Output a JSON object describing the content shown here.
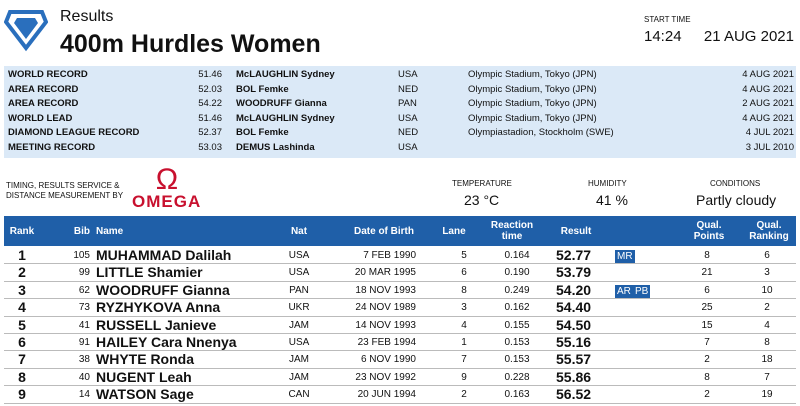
{
  "header": {
    "section": "Results",
    "title": "400m Hurdles Women",
    "start_time_label": "START TIME",
    "time": "14:24",
    "date": "21 AUG 2021"
  },
  "records": {
    "rows": [
      [
        "WORLD RECORD",
        "51.46",
        "McLAUGHLIN Sydney",
        "USA",
        "Olympic Stadium, Tokyo (JPN)",
        "4 AUG 2021"
      ],
      [
        "AREA RECORD",
        "52.03",
        "BOL Femke",
        "NED",
        "Olympic Stadium, Tokyo (JPN)",
        "4 AUG 2021"
      ],
      [
        "AREA RECORD",
        "54.22",
        "WOODRUFF Gianna",
        "PAN",
        "Olympic Stadium, Tokyo (JPN)",
        "2 AUG 2021"
      ],
      [
        "WORLD LEAD",
        "51.46",
        "McLAUGHLIN Sydney",
        "USA",
        "Olympic Stadium, Tokyo (JPN)",
        "4 AUG 2021"
      ],
      [
        "DIAMOND LEAGUE RECORD",
        "52.37",
        "BOL Femke",
        "NED",
        "Olympiastadion, Stockholm (SWE)",
        "4 JUL 2021"
      ],
      [
        "MEETING RECORD",
        "53.03",
        "DEMUS Lashinda",
        "USA",
        null,
        "3 JUL 2010"
      ]
    ]
  },
  "conditions": {
    "timing_label": "TIMING, RESULTS SERVICE & DISTANCE MEASUREMENT BY",
    "sponsor": "OMEGA",
    "temperature_label": "TEMPERATURE",
    "temperature": "23 °C",
    "humidity_label": "HUMIDITY",
    "humidity": "41 %",
    "conditions_label": "CONDITIONS",
    "conditions": "Partly cloudy"
  },
  "table": {
    "columns": [
      "Rank",
      "Bib",
      "Name",
      "Nat",
      "Date of Birth",
      "Lane",
      "Reaction time",
      "Result",
      "Qual. Points",
      "Qual. Ranking"
    ],
    "rows": [
      {
        "rank": "1",
        "bib": "105",
        "name": "MUHAMMAD Dalilah",
        "nat": "USA",
        "dob": "7 FEB 1990",
        "lane": "5",
        "reaction": "0.164",
        "result": "52.77",
        "tags": [
          "MR"
        ],
        "qual_points": "8",
        "qual_ranking": "6"
      },
      {
        "rank": "2",
        "bib": "99",
        "name": "LITTLE Shamier",
        "nat": "USA",
        "dob": "20 MAR 1995",
        "lane": "6",
        "reaction": "0.190",
        "result": "53.79",
        "tags": [],
        "qual_points": "21",
        "qual_ranking": "3"
      },
      {
        "rank": "3",
        "bib": "62",
        "name": "WOODRUFF Gianna",
        "nat": "PAN",
        "dob": "18 NOV 1993",
        "lane": "8",
        "reaction": "0.249",
        "result": "54.20",
        "tags": [
          "AR",
          "PB"
        ],
        "qual_points": "6",
        "qual_ranking": "10"
      },
      {
        "rank": "4",
        "bib": "73",
        "name": "RYZHYKOVA Anna",
        "nat": "UKR",
        "dob": "24 NOV 1989",
        "lane": "3",
        "reaction": "0.162",
        "result": "54.40",
        "tags": [],
        "qual_points": "25",
        "qual_ranking": "2"
      },
      {
        "rank": "5",
        "bib": "41",
        "name": "RUSSELL Janieve",
        "nat": "JAM",
        "dob": "14 NOV 1993",
        "lane": "4",
        "reaction": "0.155",
        "result": "54.50",
        "tags": [],
        "qual_points": "15",
        "qual_ranking": "4"
      },
      {
        "rank": "6",
        "bib": "91",
        "name": "HAILEY Cara Nnenya",
        "nat": "USA",
        "dob": "23 FEB 1994",
        "lane": "1",
        "reaction": "0.153",
        "result": "55.16",
        "tags": [],
        "qual_points": "7",
        "qual_ranking": "8"
      },
      {
        "rank": "7",
        "bib": "38",
        "name": "WHYTE Ronda",
        "nat": "JAM",
        "dob": "6 NOV 1990",
        "lane": "7",
        "reaction": "0.153",
        "result": "55.57",
        "tags": [],
        "qual_points": "2",
        "qual_ranking": "18"
      },
      {
        "rank": "8",
        "bib": "40",
        "name": "NUGENT Leah",
        "nat": "JAM",
        "dob": "23 NOV 1992",
        "lane": "9",
        "reaction": "0.228",
        "result": "55.86",
        "tags": [],
        "qual_points": "8",
        "qual_ranking": "7"
      },
      {
        "rank": "9",
        "bib": "14",
        "name": "WATSON Sage",
        "nat": "CAN",
        "dob": "20 JUN 1994",
        "lane": "2",
        "reaction": "0.163",
        "result": "56.52",
        "tags": [],
        "qual_points": "2",
        "qual_ranking": "19"
      }
    ]
  }
}
